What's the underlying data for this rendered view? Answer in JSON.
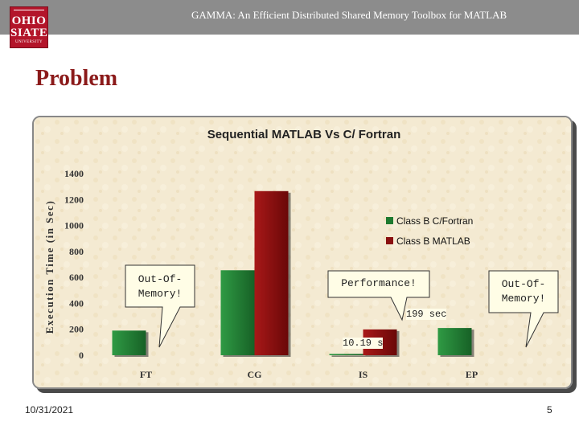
{
  "header": {
    "title": "GAMMA: An Efficient Distributed Shared Memory Toolbox for MATLAB",
    "logo": {
      "line1": "OHIO",
      "line2": "SIATE",
      "line3": "UNIVERSITY"
    }
  },
  "slide": {
    "title": "Problem",
    "date": "10/31/2021",
    "page_number": "5"
  },
  "callouts": {
    "ft_oom": "Out-Of-\nMemory!",
    "performance": "Performance!",
    "ep_oom": "Out-Of-\nMemory!",
    "is_matlab_time": "199 sec",
    "is_c_time": "10.19 s"
  },
  "colors": {
    "c_fortran": "#1e7a30",
    "matlab": "#8a1010",
    "title_red": "#8b1a1a",
    "header_gray": "#8c8c8c"
  },
  "chart_data": {
    "type": "bar",
    "title": "Sequential MATLAB Vs C/ Fortran",
    "ylabel": "Execution Time (in Sec)",
    "xlabel": "",
    "categories": [
      "FT",
      "CG",
      "IS",
      "EP"
    ],
    "yticks": [
      0,
      200,
      400,
      600,
      800,
      1000,
      1200,
      1400
    ],
    "ylim": [
      0,
      1400
    ],
    "grid": false,
    "legend": "right",
    "series": [
      {
        "name": "Class B C/Fortran",
        "values": [
          190,
          655,
          10.19,
          210
        ]
      },
      {
        "name": "Class B MATLAB",
        "values": [
          null,
          1265,
          199,
          null
        ]
      }
    ]
  }
}
